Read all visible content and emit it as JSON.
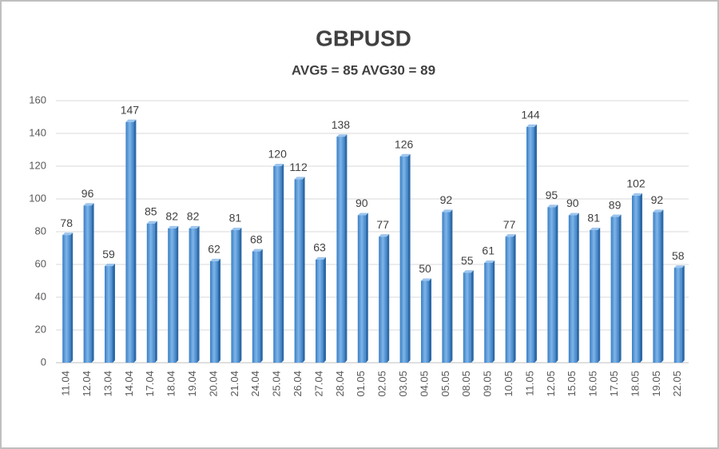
{
  "chart_data": {
    "type": "bar",
    "title": "GBPUSD",
    "subtitle": "AVG5 = 85 AVG30 = 89",
    "categories": [
      "11.04",
      "12.04",
      "13.04",
      "14.04",
      "17.04",
      "18.04",
      "19.04",
      "20.04",
      "21.04",
      "24.04",
      "25.04",
      "26.04",
      "27.04",
      "28.04",
      "01.05",
      "02.05",
      "03.05",
      "04.05",
      "05.05",
      "08.05",
      "09.05",
      "10.05",
      "11.05",
      "12.05",
      "15.05",
      "16.05",
      "17.05",
      "18.05",
      "19.05",
      "22.05"
    ],
    "values": [
      78,
      96,
      59,
      147,
      85,
      82,
      82,
      62,
      81,
      68,
      120,
      112,
      63,
      138,
      90,
      77,
      126,
      50,
      92,
      55,
      61,
      77,
      144,
      95,
      90,
      81,
      89,
      102,
      92,
      58
    ],
    "color": "#5b9bd5",
    "ylim": [
      0,
      160
    ],
    "yticks": [
      0,
      20,
      40,
      60,
      80,
      100,
      120,
      140,
      160
    ],
    "grid": true
  }
}
